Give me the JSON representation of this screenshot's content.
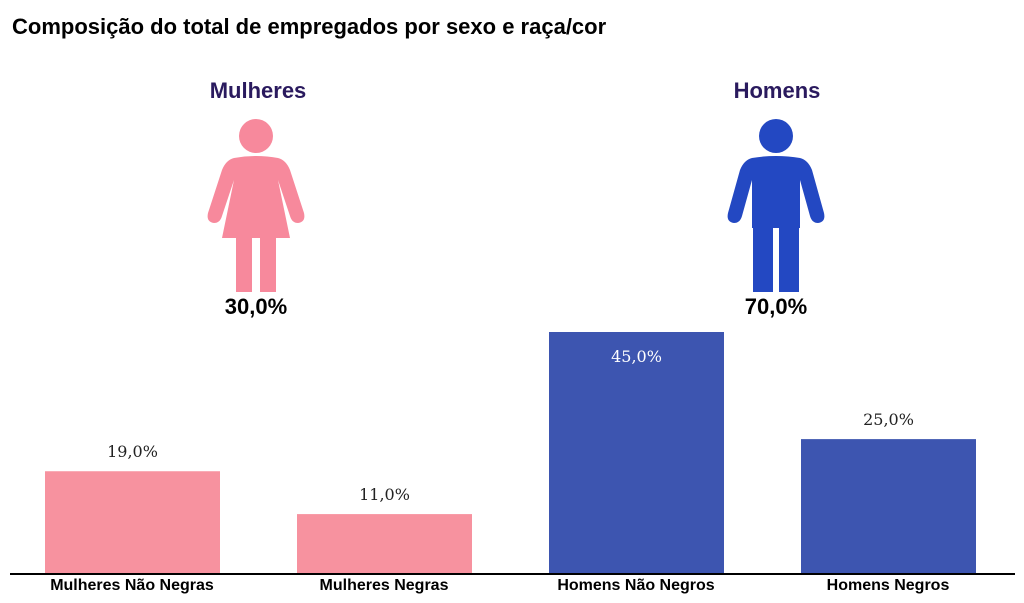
{
  "chart_data": {
    "type": "bar",
    "title": "Composição do total de empregados por sexo e raça/cor",
    "groups": [
      {
        "name": "Mulheres",
        "total_label": "30,0%",
        "total": 30.0,
        "color": "#f57f96",
        "icon": "woman-icon"
      },
      {
        "name": "Homens",
        "total_label": "70,0%",
        "total": 70.0,
        "color": "#2348c2",
        "icon": "man-icon"
      }
    ],
    "categories": [
      "Mulheres Não Negras",
      "Mulheres Negras",
      "Homens Não Negros",
      "Homens Negros"
    ],
    "values": [
      19.0,
      11.0,
      45.0,
      25.0
    ],
    "data_labels": [
      "19,0%",
      "11,0%",
      "45,0%",
      "25,0%"
    ],
    "bar_colors": [
      "#f7929f",
      "#f7929f",
      "#3d55b0",
      "#3d55b0"
    ],
    "ylim": [
      0,
      45
    ],
    "grid": false
  }
}
